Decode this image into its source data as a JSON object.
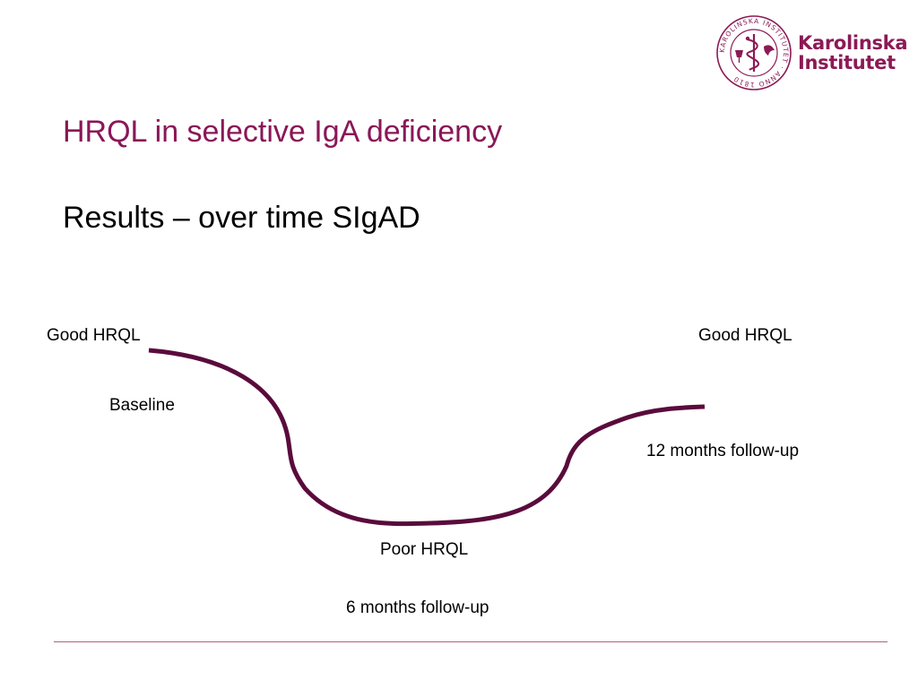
{
  "colors": {
    "title": "#8a1757",
    "curve": "#5a0b3c",
    "brand": "#8b1a55",
    "rule": "#b0627f"
  },
  "logo": {
    "line1": "Karolinska",
    "line2": "Institutet",
    "seal_text": "KAROLINSKA INSTITUTET · ANNO 1810"
  },
  "slide": {
    "title": "HRQL in selective IgA deficiency",
    "subtitle": "Results – over time SIgAD"
  },
  "diagram": {
    "start_label": "Good HRQL",
    "end_label": "Good HRQL",
    "baseline_label": "Baseline",
    "bottom_label": "Poor HRQL",
    "six_month_label": "6 months follow-up",
    "twelve_month_label": "12 months follow-up"
  }
}
